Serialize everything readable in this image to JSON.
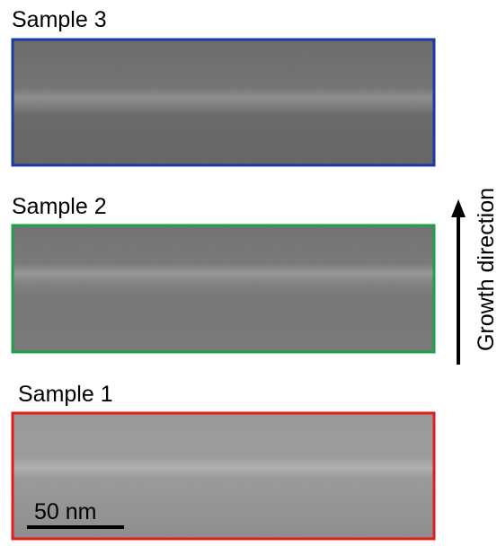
{
  "panels": [
    {
      "label": "Sample 3"
    },
    {
      "label": "Sample 2"
    },
    {
      "label": "Sample 1"
    }
  ],
  "scale_bar": {
    "label": "50 nm"
  },
  "arrow": {
    "label": "Growth direction"
  }
}
